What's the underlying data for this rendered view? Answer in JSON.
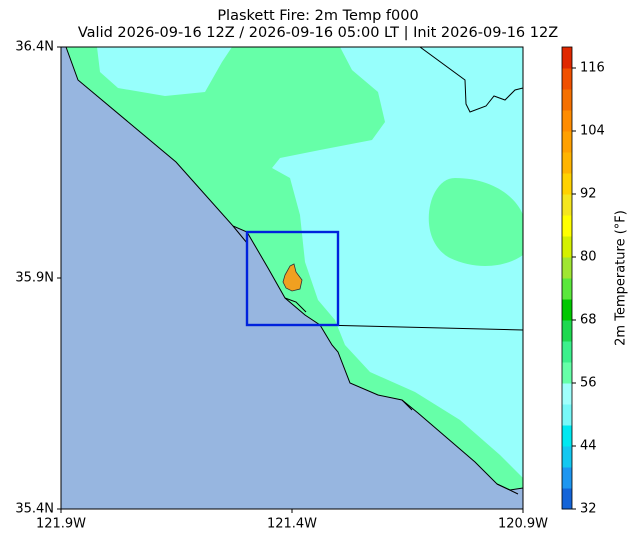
{
  "title": "Plaskett Fire: 2m Temp f000",
  "subtitle": "Valid 2026-09-16 12Z / 2026-09-16 05:00 LT | Init 2026-09-16 12Z",
  "map": {
    "xlim": [
      -121.9,
      -120.9
    ],
    "ylim": [
      35.4,
      36.4
    ],
    "xticks": [
      {
        "value": -121.9,
        "label": "121.9W"
      },
      {
        "value": -121.4,
        "label": "121.4W"
      },
      {
        "value": -120.9,
        "label": "120.9W"
      }
    ],
    "yticks": [
      {
        "value": 35.4,
        "label": "35.4N"
      },
      {
        "value": 35.9,
        "label": "35.9N"
      },
      {
        "value": 36.4,
        "label": "36.4N"
      }
    ]
  },
  "colorbar": {
    "label": "2m Temperature (°F)",
    "clim": [
      32,
      120
    ],
    "ticks": [
      32,
      44,
      56,
      68,
      80,
      92,
      104,
      116
    ],
    "colors": [
      "#1464d8",
      "#1e96f0",
      "#14c8f0",
      "#00e8f0",
      "#78f8f8",
      "#a0fffc",
      "#66ffa8",
      "#3cf08c",
      "#1ed850",
      "#00c800",
      "#5ae83c",
      "#a0e632",
      "#d4f000",
      "#ffff00",
      "#f5e61e",
      "#ffd200",
      "#ffb400",
      "#ffa000",
      "#ff8c00",
      "#f57000",
      "#f05000",
      "#e02800"
    ]
  }
}
